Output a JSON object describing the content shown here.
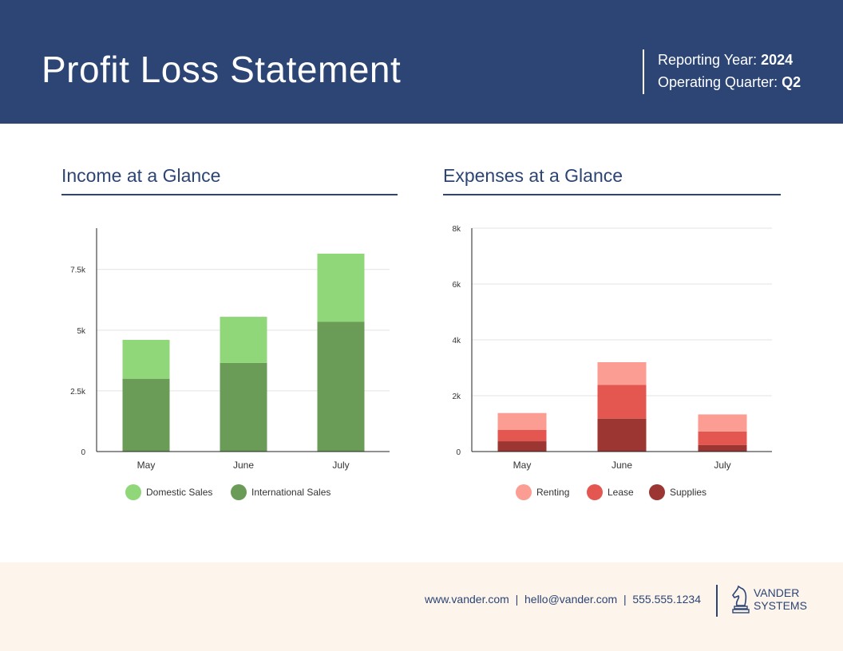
{
  "header": {
    "title": "Profit Loss Statement",
    "reporting_year_label": "Reporting Year:",
    "reporting_year": "2024",
    "operating_quarter_label": "Operating Quarter:",
    "operating_quarter": "Q2"
  },
  "income": {
    "title": "Income at a Glance"
  },
  "expenses": {
    "title": "Expenses at a Glance"
  },
  "footer": {
    "contact": "www.vander.com  |  hello@vander.com  |  555.555.1234",
    "logo_line1": "VANDER",
    "logo_line2": "SYSTEMS"
  },
  "colors": {
    "header": "#2c4574",
    "footer": "#fdf4eb"
  },
  "chart_data": [
    {
      "type": "bar",
      "stacked": true,
      "categories": [
        "May",
        "June",
        "July"
      ],
      "series": [
        {
          "name": "International Sales",
          "values": [
            3000,
            3650,
            5350
          ],
          "color": "#6a9c58"
        },
        {
          "name": "Domestic Sales",
          "values": [
            1600,
            1900,
            2800
          ],
          "color": "#8fd778"
        }
      ],
      "legend_order": [
        "Domestic Sales",
        "International Sales"
      ],
      "yticks": [
        0,
        2500,
        5000,
        7500
      ],
      "ytick_labels": [
        "0",
        "2.5k",
        "5k",
        "7.5k"
      ],
      "ylim": [
        0,
        9200
      ],
      "grid": true,
      "legend": "bottom"
    },
    {
      "type": "bar",
      "stacked": true,
      "categories": [
        "May",
        "June",
        "July"
      ],
      "series": [
        {
          "name": "Supplies",
          "values": [
            370,
            1180,
            230
          ],
          "color": "#9b3632"
        },
        {
          "name": "Lease",
          "values": [
            410,
            1210,
            490
          ],
          "color": "#e45750"
        },
        {
          "name": "Renting",
          "values": [
            600,
            810,
            610
          ],
          "color": "#fb9d92"
        }
      ],
      "legend_order": [
        "Renting",
        "Lease",
        "Supplies"
      ],
      "yticks": [
        0,
        2000,
        4000,
        6000,
        8000
      ],
      "ytick_labels": [
        "0",
        "2k",
        "4k",
        "6k",
        "8k"
      ],
      "ylim": [
        0,
        8000
      ],
      "grid": true,
      "legend": "bottom"
    }
  ]
}
